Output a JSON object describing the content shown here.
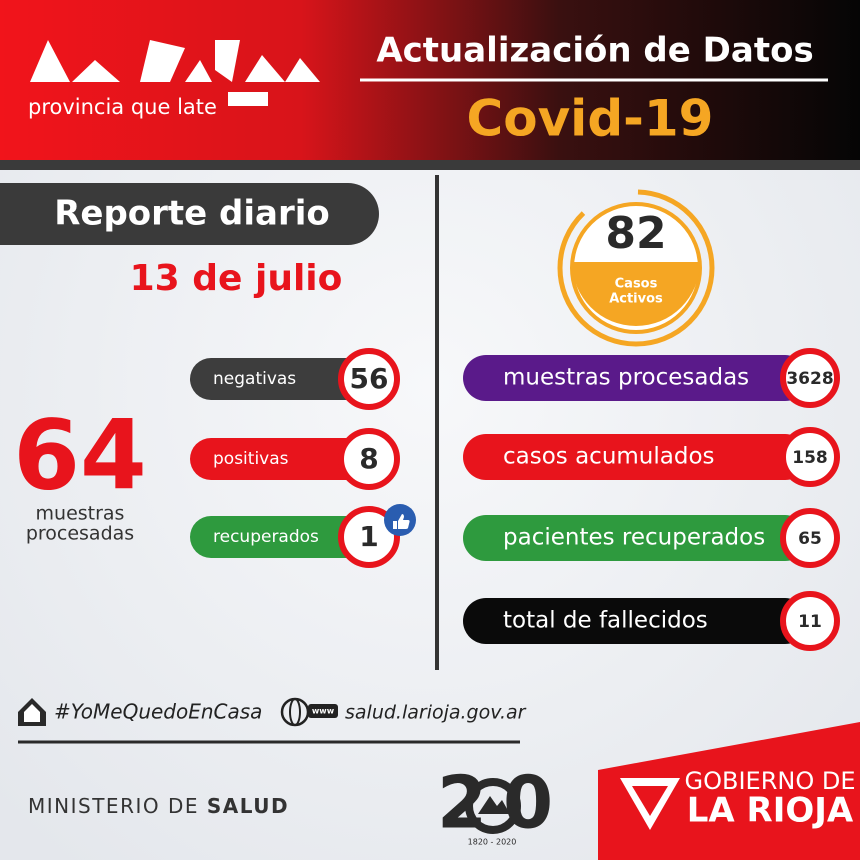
{
  "header": {
    "tagline": "provincia que late",
    "title": "Actualización de Datos",
    "subtitle": "Covid-19"
  },
  "report": {
    "title": "Reporte diario",
    "date": "13 de julio"
  },
  "daily": {
    "total": "64",
    "total_label": [
      "muestras",
      "procesadas"
    ],
    "items": [
      {
        "label": "negativas",
        "value": "56"
      },
      {
        "label": "positivas",
        "value": "8"
      },
      {
        "label": "recuperados",
        "value": "1"
      }
    ]
  },
  "active": {
    "value": "82",
    "label": [
      "Casos",
      "Activos"
    ]
  },
  "cumulative": [
    {
      "label": "muestras procesadas",
      "value": "3628"
    },
    {
      "label": "casos acumulados",
      "value": "158"
    },
    {
      "label": "pacientes recuperados",
      "value": "65"
    },
    {
      "label": "total de fallecidos",
      "value": "11"
    }
  ],
  "footer": {
    "hashtag": "#YoMeQuedoEnCasa",
    "www": "www",
    "website": "salud.larioja.gov.ar",
    "ministry": [
      "MINISTERIO DE",
      "SALUD"
    ],
    "anniversary": {
      "digits": [
        "2",
        "0"
      ],
      "years": "1820 - 2020"
    },
    "government": [
      "GOBIERNO DE",
      "LA RIOJA"
    ]
  }
}
